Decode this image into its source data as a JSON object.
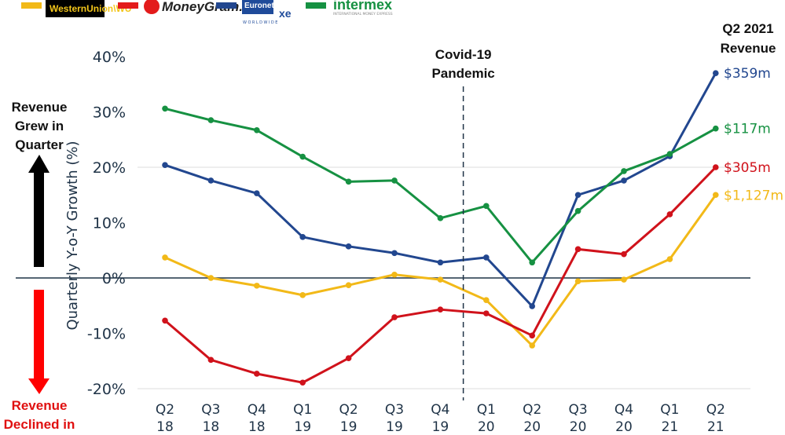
{
  "chart_data": {
    "type": "line",
    "ylabel": "Quarterly Y-o-Y Growth (%)",
    "ylim": [
      -20,
      40
    ],
    "yticks": [
      "40%",
      "30%",
      "20%",
      "10%",
      "0%",
      "-10%",
      "-20%"
    ],
    "ytick_values": [
      40,
      30,
      20,
      10,
      0,
      -10,
      -20
    ],
    "categories": [
      [
        "Q2",
        "18"
      ],
      [
        "Q3",
        "18"
      ],
      [
        "Q4",
        "18"
      ],
      [
        "Q1",
        "19"
      ],
      [
        "Q2",
        "19"
      ],
      [
        "Q3",
        "19"
      ],
      [
        "Q4",
        "19"
      ],
      [
        "Q1",
        "20"
      ],
      [
        "Q2",
        "20"
      ],
      [
        "Q3",
        "20"
      ],
      [
        "Q4",
        "20"
      ],
      [
        "Q1",
        "21"
      ],
      [
        "Q2",
        "21"
      ]
    ],
    "legend_placement": "top",
    "series": [
      {
        "name": "WesternUnion WU",
        "color": "#f2b918",
        "end_label": "$1,127m",
        "values": [
          3.7,
          0,
          -1.4,
          -3.1,
          -1.3,
          0.6,
          -0.3,
          -4.0,
          -12.2,
          -0.6,
          -0.3,
          3.4,
          15.0
        ]
      },
      {
        "name": "MoneyGram",
        "color": "#d0121b",
        "end_label": "$305m",
        "values": [
          -7.7,
          -14.8,
          -17.3,
          -18.9,
          -14.5,
          -7.1,
          -5.7,
          -6.4,
          -10.4,
          5.2,
          4.3,
          11.5,
          20.0
        ]
      },
      {
        "name": "Euronet Worldwide xe",
        "color": "#22478f",
        "end_label": "$359m",
        "values": [
          20.4,
          17.6,
          15.3,
          7.4,
          5.7,
          4.5,
          2.8,
          3.7,
          -5.1,
          15.0,
          17.6,
          22.0,
          37.0
        ]
      },
      {
        "name": "intermex International Money Express",
        "color": "#169142",
        "end_label": "$117m",
        "values": [
          30.6,
          28.5,
          26.7,
          21.9,
          17.4,
          17.6,
          10.8,
          13.0,
          2.8,
          12.1,
          19.3,
          22.4,
          27.0
        ]
      }
    ],
    "annotations": {
      "covid": [
        "Covid-19",
        "Pandemic"
      ],
      "end_header": [
        "Q2 2021",
        "Revenue"
      ],
      "grew": [
        "Revenue",
        "Grew in",
        "Quarter"
      ],
      "declined": [
        "Revenue",
        "Declined in"
      ]
    },
    "grid": true
  },
  "legend": {
    "wu": "WesternUnion\\WU",
    "mg": "MoneyGram.",
    "eu": "Euronet",
    "eu_sub": "WORLDWIDE",
    "xe": "xe",
    "ix": "intermex",
    "ix_sub": "INTERNATIONAL MONEY EXPRESS"
  }
}
